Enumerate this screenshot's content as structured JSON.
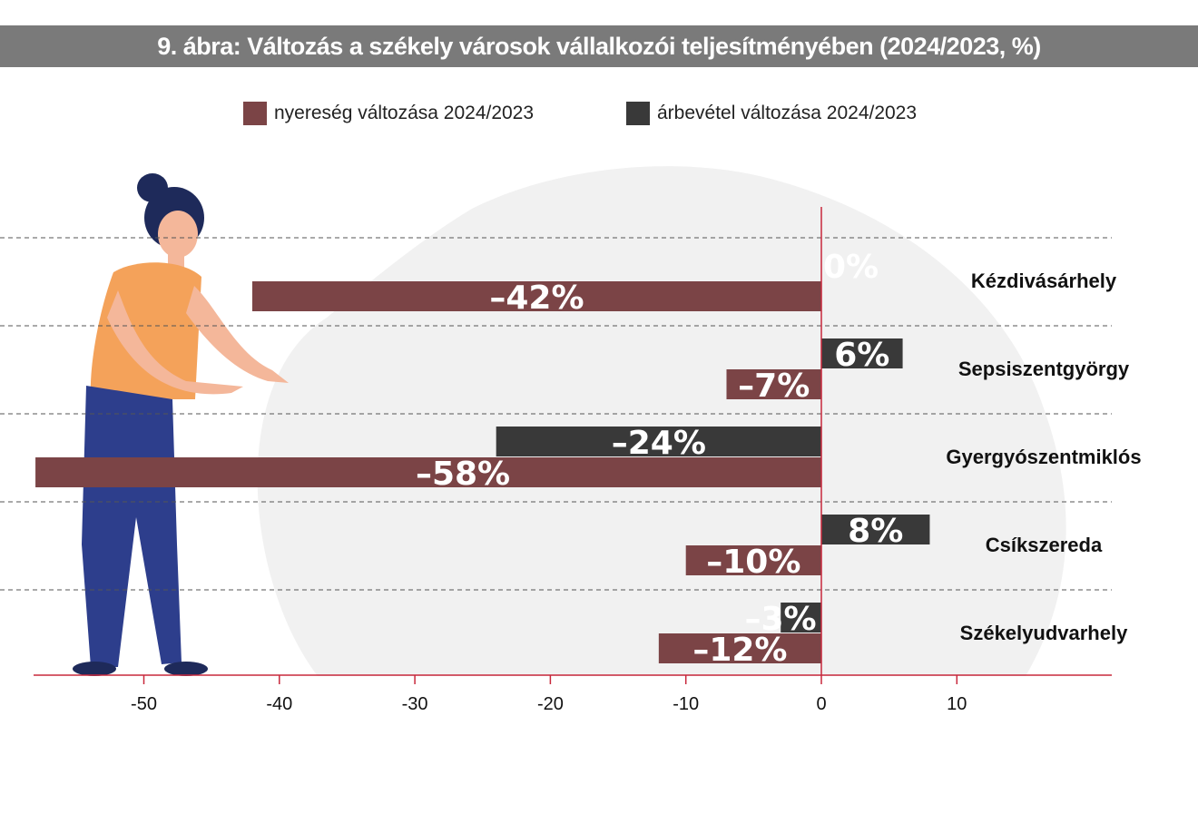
{
  "title": "9. ábra: Változás a székely városok vállalkozói teljesítményében (2024/2023, %)",
  "colors": {
    "profit": "#7b4446",
    "revenue": "#393939",
    "axis": "#c8283c",
    "title_bg": "#7a7a7a",
    "blob": "#f1f1f1"
  },
  "chart_data": {
    "type": "bar",
    "orientation": "horizontal",
    "title": "9. ábra: Változás a székely városok vállalkozói teljesítményében (2024/2023, %)",
    "categories": [
      "Kézdivásárhely",
      "Sepsiszentgyörgy",
      "Gyergyószentmiklós",
      "Csíkszereda",
      "Székelyudvarhely"
    ],
    "series": [
      {
        "name": "nyereség változása 2024/2023",
        "color": "#7b4446",
        "values": [
          -42,
          -7,
          -58,
          -10,
          -12
        ],
        "labels": [
          "–42%",
          "–7%",
          "–58%",
          "–10%",
          "–12%"
        ]
      },
      {
        "name": "árbevétel változása 2024/2023",
        "color": "#393939",
        "values": [
          0,
          6,
          -24,
          8,
          -3
        ],
        "labels": [
          "0%",
          "6%",
          "–24%",
          "8%",
          "–3%"
        ]
      }
    ],
    "x_ticks": [
      -50,
      -40,
      -30,
      -20,
      -10,
      0,
      10
    ],
    "x_tick_labels": [
      "-50",
      "-40",
      "-30",
      "-20",
      "-10",
      "0",
      "10"
    ],
    "xlim": [
      -58,
      18
    ],
    "xlabel": "",
    "ylabel": "",
    "grid": "dashed horizontal separators",
    "legend_position": "top-center"
  }
}
